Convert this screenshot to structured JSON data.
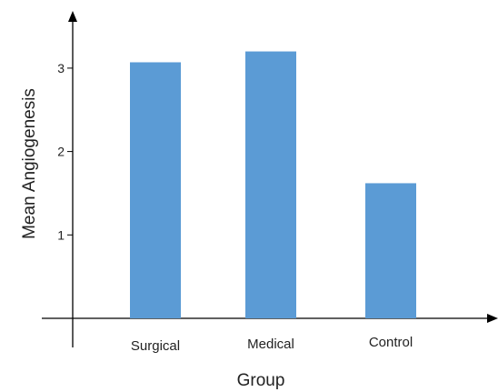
{
  "chart_data": {
    "type": "bar",
    "categories": [
      "Surgical",
      "Medical",
      "Control"
    ],
    "values": [
      3.07,
      3.2,
      1.62
    ],
    "yticks": [
      1,
      2,
      3
    ],
    "xlabel": "Group",
    "ylabel": "Mean Angiogenesis",
    "ylim": [
      0,
      3.5
    ],
    "grid": false,
    "bar_color": "#5b9bd5",
    "axis_color": "#000000"
  }
}
